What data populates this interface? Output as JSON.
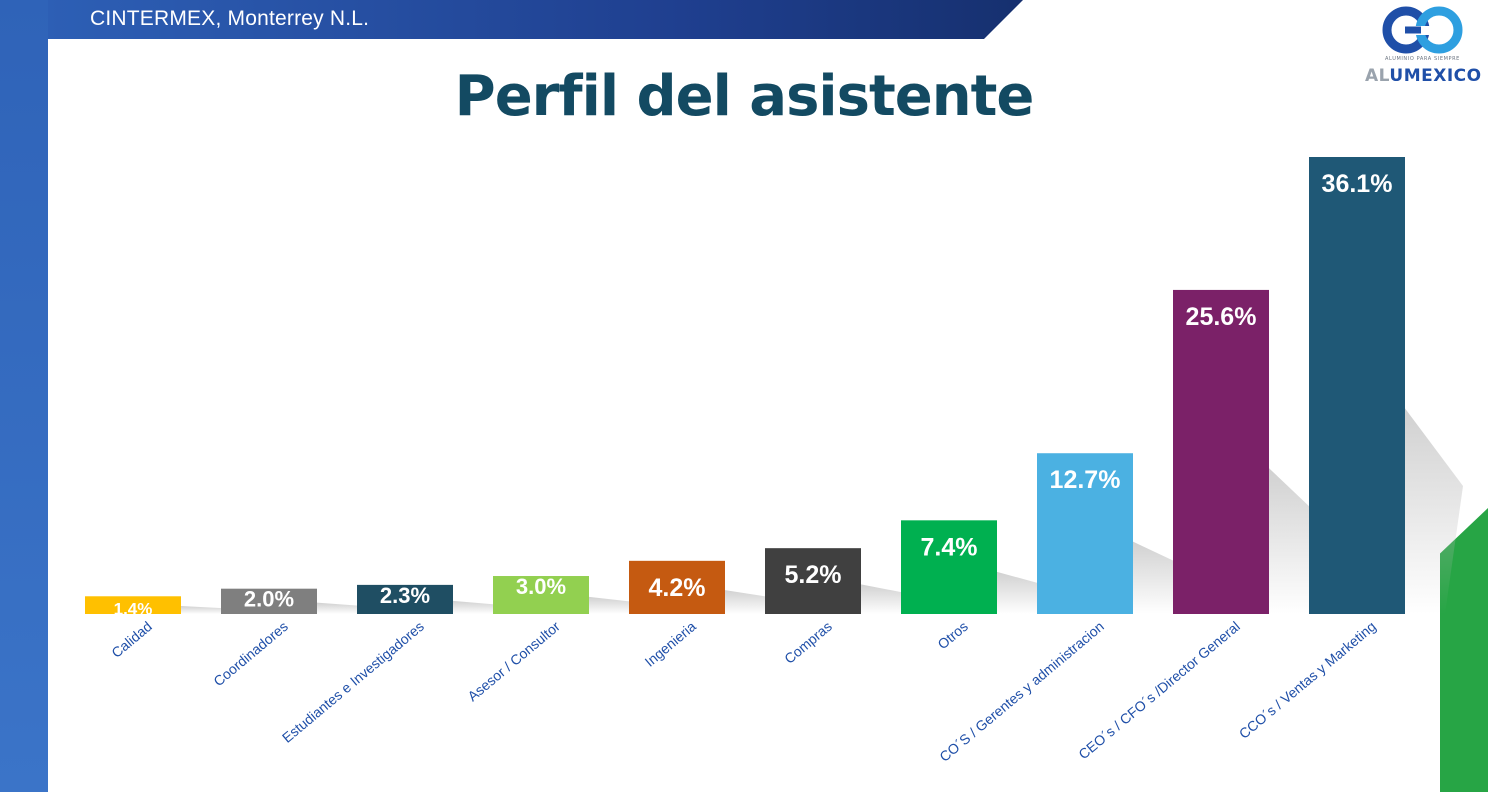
{
  "header": {
    "location": "CINTERMEX, Monterrey N.L."
  },
  "title": "Perfil del asistente",
  "logo": {
    "name": "alumexico-logo",
    "tagline": "ALUMINIO PARA SIEMPRE",
    "word_prefix": "AL",
    "word_main": "UMEXICO"
  },
  "colors": {
    "title": "#134a62",
    "label": "#1f4fa8",
    "band": "#2d5fb5",
    "accent": "#27a545"
  },
  "chart_data": {
    "type": "bar",
    "title": "Perfil del asistente",
    "xlabel": "",
    "ylabel": "",
    "ylim": [
      0,
      36.1
    ],
    "grid": false,
    "categories": [
      "Calidad",
      "Coordinadores",
      "Estudiantes e Investigadores",
      "Asesor / Consultor",
      "Ingenieria",
      "Compras",
      "Otros",
      "CO´S / Gerentes y administracion",
      "CEO´s / CFO´s /Director General",
      "CCO´s / Ventas y Marketing"
    ],
    "values": [
      1.4,
      2.0,
      2.3,
      3.0,
      4.2,
      5.2,
      7.4,
      12.7,
      25.6,
      36.1
    ],
    "value_labels": [
      "1.4%",
      "2.0%",
      "2.3%",
      "3.0%",
      "4.2%",
      "5.2%",
      "7.4%",
      "12.7%",
      "25.6%",
      "36.1%"
    ],
    "bar_colors": [
      "#ffc000",
      "#7f7f7f",
      "#1f4e63",
      "#92d050",
      "#c55a11",
      "#404040",
      "#00b050",
      "#4bb1e2",
      "#7b2168",
      "#1f5876"
    ],
    "label_colors": [
      "#ffffff",
      "#ffffff",
      "#ffffff",
      "#ffffff",
      "#ffffff",
      "#ffffff",
      "#ffffff",
      "#ffffff",
      "#ffffff",
      "#ffffff"
    ]
  }
}
